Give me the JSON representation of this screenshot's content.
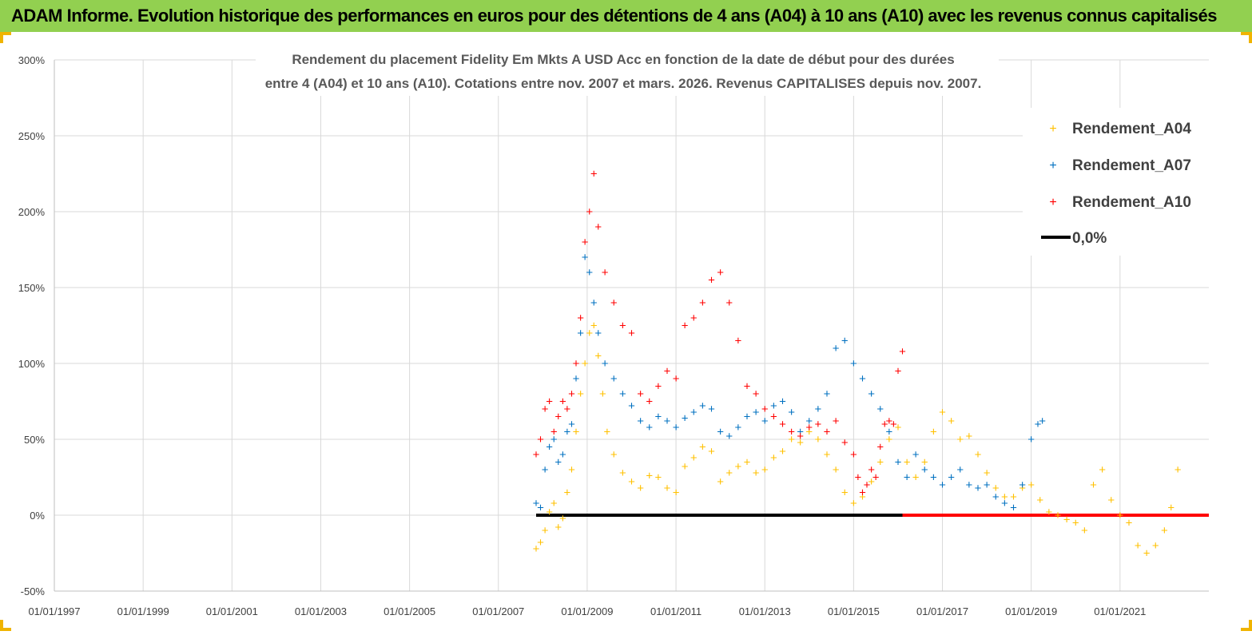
{
  "header": {
    "title": "ADAM Informe. Evolution historique des performances en euros pour des détentions de 4 ans (A04) à 10 ans (A10) avec les revenus connus capitalisés"
  },
  "chart_data": {
    "type": "scatter",
    "title_line1": "Rendement du placement Fidelity Em Mkts A USD Acc en fonction de la date de début pour des durées",
    "title_line2": "entre 4 (A04) et 10 ans (A10). Cotations entre nov. 2007 et mars. 2026. Revenus CAPITALISES depuis nov. 2007.",
    "x_range": [
      1997.0,
      2023.0
    ],
    "x_tick_years": [
      1997,
      1999,
      2001,
      2003,
      2005,
      2007,
      2009,
      2011,
      2013,
      2015,
      2017,
      2019,
      2021
    ],
    "x_tick_labels": [
      "01/01/1997",
      "01/01/1999",
      "01/01/2001",
      "01/01/2003",
      "01/01/2005",
      "01/01/2007",
      "01/01/2009",
      "01/01/2011",
      "01/01/2013",
      "01/01/2015",
      "01/01/2017",
      "01/01/2019",
      "01/01/2021"
    ],
    "y_range": [
      -50,
      300
    ],
    "y_ticks": [
      -50,
      0,
      50,
      100,
      150,
      200,
      250,
      300
    ],
    "y_tick_labels": [
      "-50%",
      "0%",
      "50%",
      "100%",
      "150%",
      "200%",
      "250%",
      "300%"
    ],
    "legend": {
      "placement": "top-right",
      "entries": [
        {
          "label": "Rendement_A04",
          "color": "#ffc000",
          "marker": "+"
        },
        {
          "label": "Rendement_A07",
          "color": "#0070c0",
          "marker": "+"
        },
        {
          "label": "Rendement_A10",
          "color": "#ff0000",
          "marker": "+"
        },
        {
          "label": "0,0%",
          "color": "#000000",
          "marker": "line"
        }
      ]
    },
    "series": [
      {
        "name": "Rendement_A04",
        "color": "#ffc000",
        "x": [
          2007.85,
          2007.95,
          2008.05,
          2008.15,
          2008.25,
          2008.35,
          2008.45,
          2008.55,
          2008.65,
          2008.75,
          2008.85,
          2008.95,
          2009.05,
          2009.15,
          2009.25,
          2009.35,
          2009.45,
          2009.6,
          2009.8,
          2010.0,
          2010.2,
          2010.4,
          2010.6,
          2010.8,
          2011.0,
          2011.2,
          2011.4,
          2011.6,
          2011.8,
          2012.0,
          2012.2,
          2012.4,
          2012.6,
          2012.8,
          2013.0,
          2013.2,
          2013.4,
          2013.6,
          2013.8,
          2014.0,
          2014.2,
          2014.4,
          2014.6,
          2014.8,
          2015.0,
          2015.2,
          2015.4,
          2015.6,
          2015.8,
          2016.0,
          2016.2,
          2016.4,
          2016.6,
          2016.8,
          2017.0,
          2017.2,
          2017.4,
          2017.6,
          2017.8,
          2018.0,
          2018.2,
          2018.4,
          2018.6,
          2018.8,
          2019.0,
          2019.2,
          2019.4,
          2019.6,
          2019.8,
          2020.0,
          2020.2,
          2020.4,
          2020.6,
          2020.8,
          2021.0,
          2021.2,
          2021.4,
          2021.6,
          2021.8,
          2022.0,
          2022.15,
          2022.3
        ],
        "values": [
          -22,
          -18,
          -10,
          2,
          8,
          -8,
          -2,
          15,
          30,
          55,
          80,
          100,
          120,
          125,
          105,
          80,
          55,
          40,
          28,
          22,
          18,
          26,
          25,
          18,
          15,
          32,
          38,
          45,
          42,
          22,
          28,
          32,
          35,
          28,
          30,
          38,
          42,
          50,
          48,
          55,
          50,
          40,
          30,
          15,
          8,
          12,
          22,
          35,
          50,
          58,
          35,
          25,
          35,
          55,
          68,
          62,
          50,
          52,
          40,
          28,
          18,
          12,
          12,
          18,
          20,
          10,
          2,
          0,
          -3,
          -5,
          -10,
          20,
          30,
          10,
          0,
          -5,
          -20,
          -25,
          -20,
          -10,
          5,
          30
        ]
      },
      {
        "name": "Rendement_A07",
        "color": "#0070c0",
        "x": [
          2007.85,
          2007.95,
          2008.05,
          2008.15,
          2008.25,
          2008.35,
          2008.45,
          2008.55,
          2008.65,
          2008.75,
          2008.85,
          2008.95,
          2009.05,
          2009.15,
          2009.25,
          2009.4,
          2009.6,
          2009.8,
          2010.0,
          2010.2,
          2010.4,
          2010.6,
          2010.8,
          2011.0,
          2011.2,
          2011.4,
          2011.6,
          2011.8,
          2012.0,
          2012.2,
          2012.4,
          2012.6,
          2012.8,
          2013.0,
          2013.2,
          2013.4,
          2013.6,
          2013.8,
          2014.0,
          2014.2,
          2014.4,
          2014.6,
          2014.8,
          2015.0,
          2015.2,
          2015.4,
          2015.6,
          2015.8,
          2016.0,
          2016.2,
          2016.4,
          2016.6,
          2016.8,
          2017.0,
          2017.2,
          2017.4,
          2017.6,
          2017.8,
          2018.0,
          2018.2,
          2018.4,
          2018.6,
          2018.8,
          2019.0,
          2019.15,
          2019.25
        ],
        "values": [
          8,
          5,
          30,
          45,
          50,
          35,
          40,
          55,
          60,
          90,
          120,
          170,
          160,
          140,
          120,
          100,
          90,
          80,
          72,
          62,
          58,
          65,
          62,
          58,
          64,
          68,
          72,
          70,
          55,
          52,
          58,
          65,
          68,
          62,
          72,
          75,
          68,
          55,
          62,
          70,
          80,
          110,
          115,
          100,
          90,
          80,
          70,
          55,
          35,
          25,
          40,
          30,
          25,
          20,
          25,
          30,
          20,
          18,
          20,
          12,
          8,
          5,
          20,
          50,
          60,
          62
        ]
      },
      {
        "name": "Rendement_A10",
        "color": "#ff0000",
        "x": [
          2007.85,
          2007.95,
          2008.05,
          2008.15,
          2008.25,
          2008.35,
          2008.45,
          2008.55,
          2008.65,
          2008.75,
          2008.85,
          2008.95,
          2009.05,
          2009.15,
          2009.25,
          2009.4,
          2009.6,
          2009.8,
          2010.0,
          2010.2,
          2010.4,
          2010.6,
          2010.8,
          2011.0,
          2011.2,
          2011.4,
          2011.6,
          2011.8,
          2012.0,
          2012.2,
          2012.4,
          2012.6,
          2012.8,
          2013.0,
          2013.2,
          2013.4,
          2013.6,
          2013.8,
          2014.0,
          2014.2,
          2014.4,
          2014.6,
          2014.8,
          2015.0,
          2015.1,
          2015.2,
          2015.3,
          2015.4,
          2015.5,
          2015.6,
          2015.7,
          2015.8,
          2015.9,
          2016.0,
          2016.1
        ],
        "values": [
          40,
          50,
          70,
          75,
          55,
          65,
          75,
          70,
          80,
          100,
          130,
          180,
          200,
          225,
          190,
          160,
          140,
          125,
          120,
          80,
          75,
          85,
          95,
          90,
          125,
          130,
          140,
          155,
          160,
          140,
          115,
          85,
          80,
          70,
          65,
          60,
          55,
          52,
          58,
          60,
          55,
          62,
          48,
          40,
          25,
          15,
          20,
          30,
          25,
          45,
          60,
          62,
          60,
          95,
          108
        ]
      }
    ],
    "reference_lines": [
      {
        "name": "0,0%",
        "value": 0,
        "x_start": 2007.85,
        "x_end": 2023.0,
        "color": "#000000"
      },
      {
        "name": "A10 zero fill",
        "value": 0,
        "x_start": 2016.1,
        "x_end": 2023.0,
        "color": "#ff0000"
      }
    ]
  }
}
